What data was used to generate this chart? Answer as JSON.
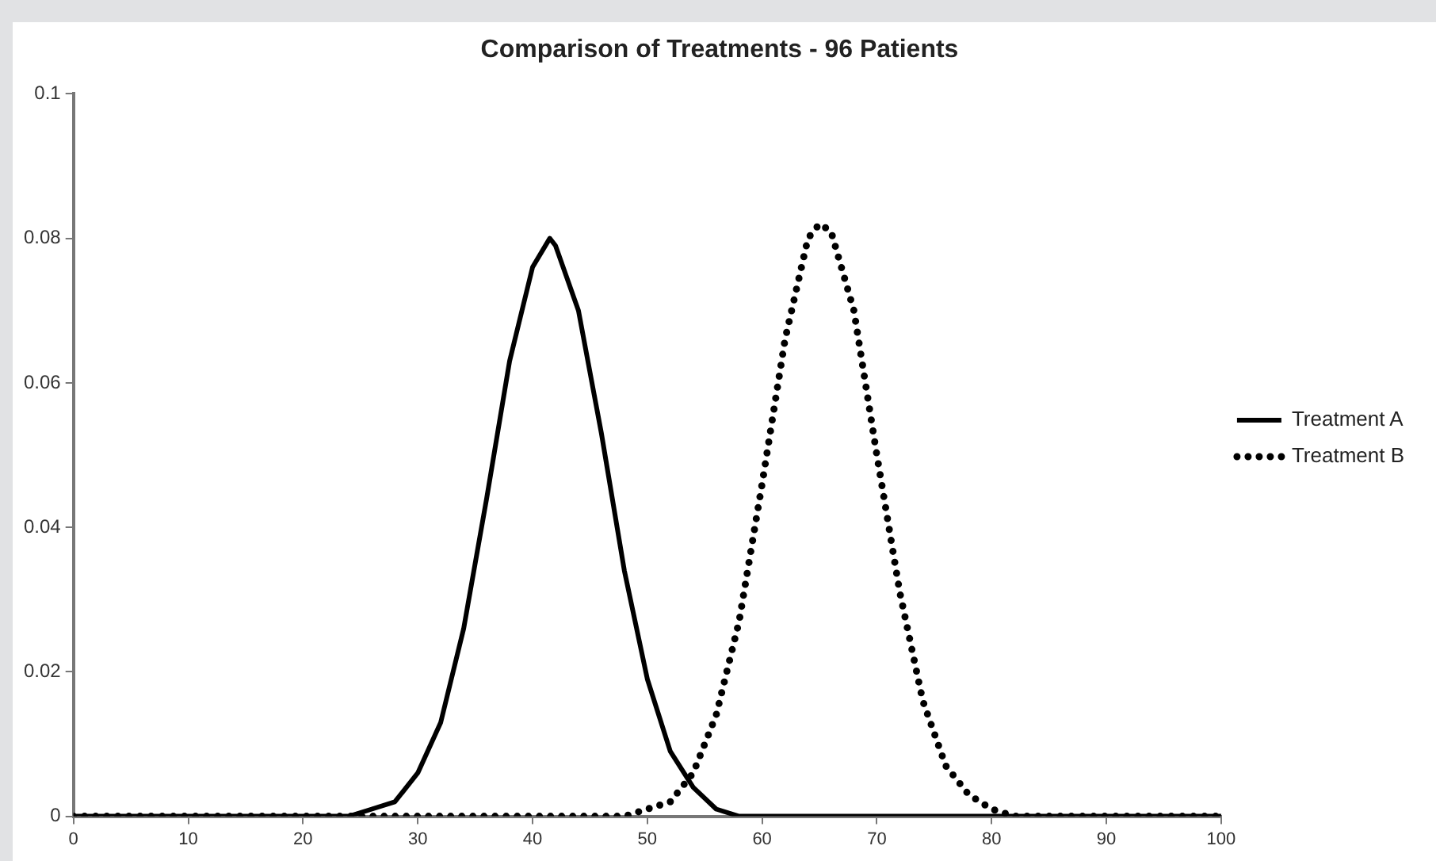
{
  "chart_data": {
    "type": "line",
    "title": "Comparison of Treatments - 96 Patients",
    "series": [
      {
        "name": "Treatment A",
        "color": "#000000",
        "line_style": "solid",
        "x": [
          0,
          2,
          4,
          6,
          8,
          10,
          12,
          14,
          16,
          18,
          20,
          22,
          24,
          26,
          28,
          30,
          32,
          34,
          36,
          38,
          40,
          41.5,
          42,
          44,
          46,
          48,
          50,
          52,
          54,
          56,
          58,
          60,
          62,
          64,
          66,
          68,
          70,
          72,
          74,
          76,
          78,
          80,
          82,
          84,
          86,
          88,
          90,
          92,
          94,
          96,
          98,
          100
        ],
        "values": [
          0,
          0,
          0,
          0,
          0,
          0,
          0,
          0,
          0,
          0,
          0,
          0,
          0,
          0.001,
          0.002,
          0.006,
          0.013,
          0.026,
          0.044,
          0.063,
          0.076,
          0.08,
          0.079,
          0.07,
          0.053,
          0.034,
          0.019,
          0.009,
          0.004,
          0.001,
          0,
          0,
          0,
          0,
          0,
          0,
          0,
          0,
          0,
          0,
          0,
          0,
          0,
          0,
          0,
          0,
          0,
          0,
          0,
          0,
          0,
          0
        ]
      },
      {
        "name": "Treatment B",
        "color": "#000000",
        "line_style": "dotted",
        "x": [
          0,
          2,
          4,
          6,
          8,
          10,
          12,
          14,
          16,
          18,
          20,
          22,
          24,
          26,
          28,
          30,
          32,
          34,
          36,
          38,
          40,
          42,
          44,
          46,
          48,
          50,
          52,
          54,
          56,
          58,
          60,
          62,
          64,
          65,
          66,
          68,
          70,
          72,
          74,
          76,
          78,
          80,
          82,
          84,
          86,
          88,
          90,
          92,
          94,
          96,
          98,
          100
        ],
        "values": [
          0,
          0,
          0,
          0,
          0,
          0,
          0,
          0,
          0,
          0,
          0,
          0,
          0,
          0,
          0,
          0,
          0,
          0,
          0,
          0,
          0,
          0,
          0,
          0,
          0,
          0.001,
          0.002,
          0.006,
          0.014,
          0.027,
          0.046,
          0.066,
          0.08,
          0.082,
          0.081,
          0.07,
          0.05,
          0.031,
          0.016,
          0.007,
          0.003,
          0.001,
          0,
          0,
          0,
          0,
          0,
          0,
          0,
          0,
          0,
          0
        ]
      }
    ],
    "xlim": [
      0,
      100
    ],
    "xticks": [
      0,
      10,
      20,
      30,
      40,
      50,
      60,
      70,
      80,
      90,
      100
    ],
    "ylim": [
      0,
      0.1
    ],
    "yticks": [
      0,
      0.02,
      0.04,
      0.06,
      0.08,
      0.1
    ],
    "grid": false,
    "legend": "right",
    "marker": "none"
  }
}
